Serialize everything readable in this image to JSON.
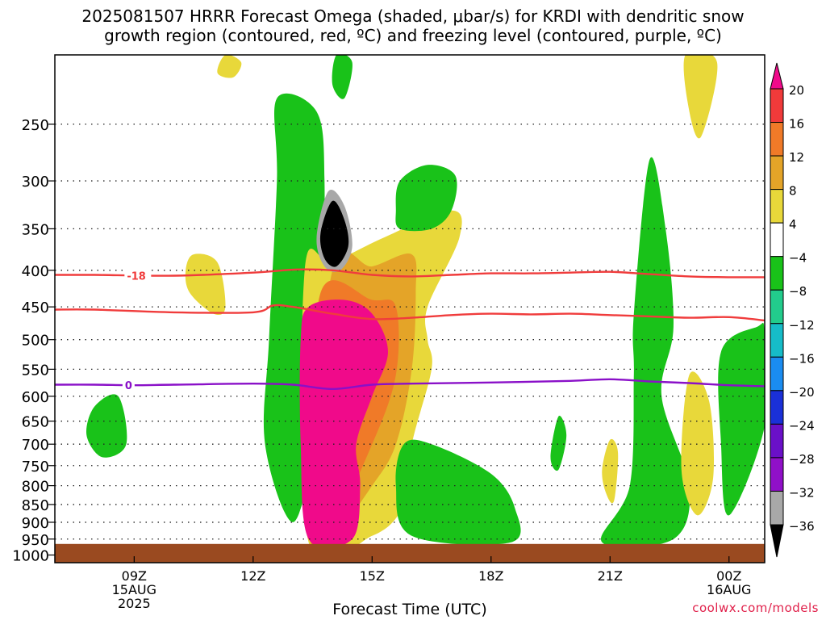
{
  "title": {
    "line1": "2025081507 HRRR Forecast Omega (shaded, μbar/s) for KRDI with dendritic snow",
    "line2": "growth region (contoured, red, ºC) and freezing level (contoured, purple, ºC)"
  },
  "credit": "coolwx.com/models",
  "chart_data": {
    "type": "heatmap",
    "xlabel": "Forecast Time (UTC)",
    "ylabel": "",
    "x_ticks": [
      {
        "label": "09Z",
        "sub": [
          "15AUG",
          "2025"
        ],
        "hour": 9
      },
      {
        "label": "12Z",
        "sub": [],
        "hour": 12
      },
      {
        "label": "15Z",
        "sub": [],
        "hour": 15
      },
      {
        "label": "18Z",
        "sub": [],
        "hour": 18
      },
      {
        "label": "21Z",
        "sub": [],
        "hour": 21
      },
      {
        "label": "00Z",
        "sub": [
          "16AUG"
        ],
        "hour": 24
      }
    ],
    "xlim": [
      7,
      24.9
    ],
    "y_ticks": [
      250,
      300,
      350,
      400,
      450,
      500,
      550,
      600,
      650,
      700,
      750,
      800,
      850,
      900,
      950,
      1000
    ],
    "ylim_hpa": [
      200,
      1025
    ],
    "y_log": true,
    "grid": "dotted",
    "colorbar": {
      "labels": [
        "20",
        "16",
        "12",
        "8",
        "4",
        "−4",
        "−8",
        "−12",
        "−16",
        "−20",
        "−24",
        "−28",
        "−32",
        "−36"
      ],
      "colors": [
        "#f00a8a",
        "#f03a3a",
        "#f07a28",
        "#e4a428",
        "#e8d83a",
        "#ffffff",
        "#19c219",
        "#22cc8c",
        "#16bcc8",
        "#1a8cf0",
        "#1a30d8",
        "#6a10c8",
        "#9010c8",
        "#a8a8a8",
        "#000000"
      ]
    },
    "contours": [
      {
        "kind": "dendritic",
        "label": "-18",
        "color": "#f03c3c",
        "points": [
          [
            7,
            406
          ],
          [
            8,
            406
          ],
          [
            10,
            407
          ],
          [
            12,
            403
          ],
          [
            13.1,
            399
          ],
          [
            14,
            400
          ],
          [
            15,
            406
          ],
          [
            16,
            408
          ],
          [
            17,
            406
          ],
          [
            18,
            404
          ],
          [
            19,
            404
          ],
          [
            20,
            403
          ],
          [
            21,
            402
          ],
          [
            22,
            405
          ],
          [
            23,
            408
          ],
          [
            24,
            409
          ],
          [
            24.9,
            409
          ]
        ]
      },
      {
        "kind": "dendritic",
        "label": "",
        "color": "#f03c3c",
        "points": [
          [
            7,
            454
          ],
          [
            8,
            454
          ],
          [
            10,
            458
          ],
          [
            12,
            458
          ],
          [
            12.5,
            448
          ],
          [
            13,
            450
          ],
          [
            14,
            460
          ],
          [
            15,
            468
          ],
          [
            16,
            466
          ],
          [
            17,
            462
          ],
          [
            18,
            460
          ],
          [
            19,
            461
          ],
          [
            20,
            460
          ],
          [
            21,
            462
          ],
          [
            22,
            464
          ],
          [
            23,
            466
          ],
          [
            24,
            465
          ],
          [
            24.9,
            470
          ]
        ]
      },
      {
        "kind": "freezing",
        "label": "0",
        "color": "#8a10c8",
        "points": [
          [
            7,
            578
          ],
          [
            8,
            578
          ],
          [
            9,
            579
          ],
          [
            10,
            578
          ],
          [
            12,
            576
          ],
          [
            13,
            578
          ],
          [
            14,
            586
          ],
          [
            15,
            578
          ],
          [
            16,
            576
          ],
          [
            18,
            574
          ],
          [
            20,
            571
          ],
          [
            21,
            568
          ],
          [
            22,
            572
          ],
          [
            23,
            575
          ],
          [
            24,
            579
          ],
          [
            24.9,
            581
          ]
        ]
      }
    ],
    "shaded": [
      {
        "level": "+4",
        "color": "#e8d83a",
        "hull": [
          [
            10.5,
            380
          ],
          [
            11.1,
            390
          ],
          [
            11.3,
            450
          ],
          [
            11,
            460
          ],
          [
            10.4,
            430
          ],
          [
            10.3,
            400
          ]
        ],
        "value_range": [
          4,
          8
        ]
      },
      {
        "level": "+4",
        "color": "#e8d83a",
        "hull": [
          [
            11.3,
            200
          ],
          [
            11.7,
            205
          ],
          [
            11.5,
            215
          ],
          [
            11.1,
            212
          ]
        ],
        "value_range": [
          4,
          8
        ]
      },
      {
        "level": "-4",
        "color": "#19c219",
        "hull": [
          [
            12.6,
            230
          ],
          [
            13.6,
            240
          ],
          [
            13.8,
            300
          ],
          [
            13.7,
            450
          ],
          [
            13.3,
            550
          ],
          [
            13.5,
            700
          ],
          [
            13,
            900
          ],
          [
            12.3,
            700
          ],
          [
            12.4,
            500
          ],
          [
            12.6,
            300
          ]
        ],
        "value_range": [
          -8,
          -4
        ]
      },
      {
        "level": "-4",
        "color": "#19c219",
        "hull": [
          [
            8,
            620
          ],
          [
            8.6,
            600
          ],
          [
            8.8,
            700
          ],
          [
            8.2,
            730
          ],
          [
            7.8,
            680
          ]
        ],
        "value_range": [
          -8,
          -4
        ]
      },
      {
        "level": "+4",
        "color": "#e8d83a",
        "hull": [
          [
            14,
            390
          ],
          [
            15.3,
            360
          ],
          [
            17,
            330
          ],
          [
            17.2,
            360
          ],
          [
            16.4,
            450
          ],
          [
            16.4,
            500
          ],
          [
            16.5,
            550
          ],
          [
            16,
            700
          ],
          [
            15.8,
            850
          ],
          [
            15,
            940
          ],
          [
            13.4,
            960
          ],
          [
            13.3,
            400
          ]
        ],
        "value_range": [
          4,
          8
        ]
      },
      {
        "level": "+8",
        "color": "#e4a428",
        "hull": [
          [
            14,
            400
          ],
          [
            15,
            395
          ],
          [
            16,
            380
          ],
          [
            16.1,
            430
          ],
          [
            16,
            550
          ],
          [
            15.6,
            700
          ],
          [
            15,
            800
          ],
          [
            14,
            940
          ],
          [
            13.4,
            900
          ]
        ],
        "value_range": [
          8,
          12
        ]
      },
      {
        "level": "+12",
        "color": "#f07a28",
        "hull": [
          [
            13.7,
            430
          ],
          [
            15,
            440
          ],
          [
            15.6,
            450
          ],
          [
            15.6,
            560
          ],
          [
            15,
            700
          ],
          [
            14,
            900
          ],
          [
            13.5,
            800
          ]
        ],
        "value_range": [
          12,
          16
        ]
      },
      {
        "level": "+20",
        "color": "#f00a8a",
        "hull": [
          [
            13.4,
            450
          ],
          [
            14.3,
            440
          ],
          [
            15,
            460
          ],
          [
            15.4,
            520
          ],
          [
            15,
            600
          ],
          [
            14.6,
            700
          ],
          [
            14.7,
            800
          ],
          [
            14.5,
            950
          ],
          [
            13.4,
            950
          ],
          [
            13.2,
            700
          ],
          [
            13.2,
            500
          ]
        ],
        "value_range": [
          20,
          999
        ]
      },
      {
        "level": "-4",
        "color": "#19c219",
        "hull": [
          [
            15.7,
            300
          ],
          [
            16.4,
            285
          ],
          [
            17.1,
            295
          ],
          [
            17,
            330
          ],
          [
            16.5,
            350
          ],
          [
            15.7,
            350
          ],
          [
            15.6,
            330
          ]
        ],
        "value_range": [
          -8,
          -4
        ]
      },
      {
        "level": "-4",
        "color": "#19c219",
        "hull": [
          [
            14.1,
            200
          ],
          [
            14.5,
            205
          ],
          [
            14.3,
            230
          ],
          [
            14,
            220
          ]
        ],
        "value_range": [
          -8,
          -4
        ]
      },
      {
        "level": "-4",
        "color": "#19c219",
        "hull": [
          [
            15.8,
            700
          ],
          [
            16.5,
            700
          ],
          [
            18,
            770
          ],
          [
            18.6,
            860
          ],
          [
            18.5,
            960
          ],
          [
            16,
            940
          ],
          [
            15.6,
            800
          ]
        ],
        "value_range": [
          -8,
          -4
        ]
      },
      {
        "level": "-4",
        "color": "#19c219",
        "hull": [
          [
            19.7,
            640
          ],
          [
            19.9,
            680
          ],
          [
            19.7,
            760
          ],
          [
            19.5,
            730
          ]
        ],
        "value_range": [
          -8,
          -4
        ]
      },
      {
        "level": "-4",
        "color": "#19c219",
        "hull": [
          [
            22,
            280
          ],
          [
            22.4,
            350
          ],
          [
            22.6,
            480
          ],
          [
            22.3,
            600
          ],
          [
            23,
            800
          ],
          [
            22.6,
            950
          ],
          [
            20.8,
            960
          ],
          [
            21.5,
            800
          ],
          [
            21.6,
            560
          ],
          [
            21.6,
            460
          ]
        ],
        "value_range": [
          -8,
          -4
        ]
      },
      {
        "level": "-4",
        "color": "#19c219",
        "hull": [
          [
            24.7,
            480
          ],
          [
            24.9,
            490
          ],
          [
            24.9,
            660
          ],
          [
            24,
            880
          ],
          [
            23.8,
            700
          ],
          [
            23.8,
            520
          ]
        ],
        "value_range": [
          -8,
          -4
        ]
      },
      {
        "level": "+4",
        "color": "#e8d83a",
        "hull": [
          [
            22.9,
            200
          ],
          [
            23.7,
            205
          ],
          [
            23.3,
            260
          ],
          [
            23,
            240
          ]
        ],
        "value_range": [
          4,
          8
        ]
      },
      {
        "level": "+4",
        "color": "#e8d83a",
        "hull": [
          [
            23,
            560
          ],
          [
            23.5,
            610
          ],
          [
            23.6,
            780
          ],
          [
            23.2,
            880
          ],
          [
            22.8,
            760
          ]
        ],
        "value_range": [
          4,
          8
        ]
      },
      {
        "level": "+4",
        "color": "#e8d83a",
        "hull": [
          [
            21,
            690
          ],
          [
            21.2,
            720
          ],
          [
            21.1,
            840
          ],
          [
            20.9,
            820
          ],
          [
            20.8,
            760
          ]
        ],
        "value_range": [
          4,
          8
        ]
      },
      {
        "level": "-32",
        "color": "#a8a8a8",
        "hull": [
          [
            13.9,
            310
          ],
          [
            14.3,
            325
          ],
          [
            14.5,
            370
          ],
          [
            14.2,
            400
          ],
          [
            13.8,
            395
          ],
          [
            13.6,
            360
          ]
        ],
        "value_range": [
          -36,
          -32
        ]
      },
      {
        "level": "-36",
        "color": "#000000",
        "hull": [
          [
            14,
            320
          ],
          [
            14.3,
            340
          ],
          [
            14.4,
            370
          ],
          [
            14.1,
            395
          ],
          [
            13.8,
            385
          ],
          [
            13.7,
            355
          ]
        ],
        "value_range": [
          -999,
          -36
        ]
      }
    ]
  }
}
